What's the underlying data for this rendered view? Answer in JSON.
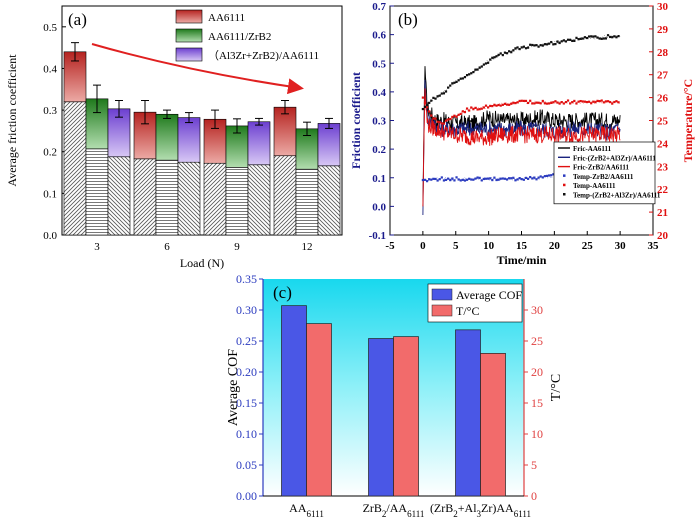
{
  "chart_data": [
    {
      "panel_label": "(a)",
      "type": "bar",
      "categories": [
        "3",
        "6",
        "9",
        "12"
      ],
      "series": [
        {
          "name": "AA6111",
          "values": [
            0.44,
            0.295,
            0.278,
            0.307
          ],
          "errors": [
            0.022,
            0.028,
            0.022,
            0.016
          ],
          "color": "#c0302b",
          "hatch": "diagonal-down"
        },
        {
          "name": "AA6111/ZrB2",
          "values": [
            0.327,
            0.29,
            0.262,
            0.255
          ],
          "errors": [
            0.033,
            0.01,
            0.017,
            0.016
          ],
          "color": "#2f8a2a",
          "hatch": "horizontal"
        },
        {
          "name": "（Al3Zr+ZrB2)/AA6111",
          "values": [
            0.303,
            0.282,
            0.272,
            0.268
          ],
          "errors": [
            0.02,
            0.012,
            0.008,
            0.012
          ],
          "color": "#7b4fd0",
          "hatch": "diagonal-up"
        }
      ],
      "xlabel": "Load (N)",
      "ylabel": "Average friction coefficient",
      "ylim": [
        0.0,
        0.55
      ],
      "yticks": [
        "0.0",
        "0.1",
        "0.2",
        "0.3",
        "0.4",
        "0.5"
      ],
      "legend_position": "top-right",
      "annotation": "red arrow showing decreasing trend"
    },
    {
      "panel_label": "(b)",
      "type": "line",
      "xlabel": "Time/min",
      "ylabel": "Friction coefficient",
      "ylabel_right": "Temperature/°C",
      "xlim": [
        -5,
        35
      ],
      "ylim": [
        -0.1,
        0.7
      ],
      "ylim_right": [
        20,
        30
      ],
      "xticks": [
        "-5",
        "0",
        "5",
        "10",
        "15",
        "20",
        "25",
        "30",
        "35"
      ],
      "yticks": [
        "-0.1",
        "0.0",
        "0.1",
        "0.2",
        "0.3",
        "0.4",
        "0.5",
        "0.6",
        "0.7"
      ],
      "yticks_right": [
        "20",
        "21",
        "22",
        "23",
        "24",
        "25",
        "26",
        "27",
        "28",
        "29",
        "30"
      ],
      "series": [
        {
          "name": "Fric-AA6111",
          "axis": "left",
          "color": "#000000",
          "x": [
            0,
            0.3,
            0.6,
            1,
            2,
            3,
            5,
            8,
            10,
            12,
            15,
            18,
            20,
            22,
            25,
            28,
            30
          ],
          "y": [
            0.0,
            0.5,
            0.35,
            0.33,
            0.3,
            0.3,
            0.29,
            0.29,
            0.31,
            0.3,
            0.3,
            0.31,
            0.3,
            0.3,
            0.3,
            0.3,
            0.3
          ]
        },
        {
          "name": "Fric-(ZrB2+Al3Zr)/AA6111",
          "axis": "left",
          "color": "#1a237e",
          "x": [
            0,
            0.3,
            0.6,
            1,
            2,
            3,
            5,
            8,
            10,
            12,
            15,
            18,
            20,
            22,
            25,
            28,
            30
          ],
          "y": [
            -0.03,
            0.45,
            0.32,
            0.3,
            0.28,
            0.27,
            0.27,
            0.27,
            0.27,
            0.27,
            0.27,
            0.27,
            0.26,
            0.27,
            0.27,
            0.26,
            0.27
          ]
        },
        {
          "name": "Fric-ZrB2/AA6111",
          "axis": "left",
          "color": "#e01010",
          "x": [
            0,
            0.3,
            0.6,
            1,
            2,
            3,
            5,
            8,
            10,
            12,
            15,
            18,
            20,
            22,
            25,
            28,
            30
          ],
          "y": [
            0.0,
            0.42,
            0.3,
            0.28,
            0.27,
            0.26,
            0.25,
            0.24,
            0.24,
            0.25,
            0.25,
            0.25,
            0.25,
            0.25,
            0.25,
            0.25,
            0.25
          ]
        },
        {
          "name": "Temp-ZrB2/AA6111",
          "axis": "right",
          "color": "#2b3bbf",
          "x": [
            0,
            2,
            5,
            8,
            10,
            12,
            15,
            18,
            20,
            22,
            25,
            28,
            30
          ],
          "y": [
            22.4,
            22.45,
            22.45,
            22.45,
            22.45,
            22.45,
            22.45,
            22.5,
            22.6,
            22.5,
            22.45,
            22.45,
            22.5
          ]
        },
        {
          "name": "Temp-AA6111",
          "axis": "right",
          "color": "#e01010",
          "x": [
            0,
            1,
            2,
            3,
            5,
            7,
            10,
            12,
            15,
            18,
            20,
            22,
            25,
            28,
            30
          ],
          "y": [
            26.0,
            25.3,
            25.0,
            24.9,
            25.2,
            25.5,
            25.6,
            25.7,
            25.8,
            25.8,
            25.8,
            25.8,
            25.8,
            25.8,
            25.8
          ]
        },
        {
          "name": "Temp-(ZrB2+Al3Zr)/AA6111",
          "axis": "right",
          "color": "#111111",
          "x": [
            0,
            1,
            2,
            3,
            5,
            7,
            10,
            12,
            15,
            18,
            20,
            22,
            25,
            28,
            30
          ],
          "y": [
            25.5,
            25.8,
            26.0,
            26.2,
            26.7,
            27.0,
            27.6,
            27.9,
            28.2,
            28.3,
            28.4,
            28.5,
            28.6,
            28.65,
            28.7
          ]
        }
      ],
      "legend_position": "bottom-right"
    },
    {
      "panel_label": "(c)",
      "type": "bar",
      "categories": [
        "AA6111",
        "ZrB2/AA6111",
        "(ZrB2+Al3Zr)AA6111"
      ],
      "series": [
        {
          "name": "Average COF",
          "axis": "left",
          "values": [
            0.307,
            0.254,
            0.268
          ],
          "color": "#4a57e6"
        },
        {
          "name": "T/°C",
          "axis": "right",
          "values": [
            27.8,
            25.7,
            23.0
          ],
          "color": "#f26b6b"
        }
      ],
      "ylabel": "Average COF",
      "ylabel_right": "T/°C",
      "ylim": [
        0.0,
        0.35
      ],
      "ylim_right": [
        0,
        35
      ],
      "yticks": [
        "0.00",
        "0.05",
        "0.10",
        "0.15",
        "0.20",
        "0.25",
        "0.30",
        "0.35"
      ],
      "yticks_right": [
        "0",
        "5",
        "10",
        "15",
        "20",
        "25",
        "30"
      ],
      "legend_position": "top-right",
      "background": "cyan gradient"
    }
  ]
}
